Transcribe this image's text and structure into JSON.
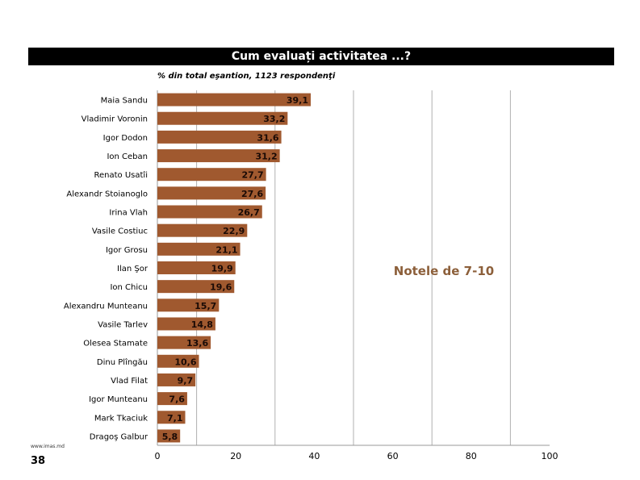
{
  "page": {
    "site": "www.imas.md",
    "page_number": "38"
  },
  "chart_data": {
    "type": "bar",
    "orientation": "horizontal",
    "title": "Cum evaluați activitatea ...?",
    "subtitle": "% din total eşantion, 1123 respondenţi",
    "annotation": "Notele de 7-10",
    "categories": [
      "Maia Sandu",
      "Vladimir Voronin",
      "Igor Dodon",
      "Ion Ceban",
      "Renato Usatîi",
      "Alexandr Stoianoglo",
      "Irina Vlah",
      "Vasile Costiuc",
      "Igor Grosu",
      "Ilan Şor",
      "Ion Chicu",
      "Alexandru Munteanu",
      "Vasile Tarlev",
      "Olesea Stamate",
      "Dinu Plîngău",
      "Vlad Filat",
      "Igor Munteanu",
      "Mark Tkaciuk",
      "Dragoş Galbur"
    ],
    "values": [
      39.1,
      33.2,
      31.6,
      31.2,
      27.7,
      27.6,
      26.7,
      22.9,
      21.1,
      19.9,
      19.6,
      15.7,
      14.8,
      13.6,
      10.6,
      9.7,
      7.6,
      7.1,
      5.8
    ],
    "data_labels": [
      "39,1",
      "33,2",
      "31,6",
      "31,2",
      "27,7",
      "27,6",
      "26,7",
      "22,9",
      "21,1",
      "19,9",
      "19,6",
      "15,7",
      "14,8",
      "13,6",
      "10,6",
      "9,7",
      "7,6",
      "7,1",
      "5,8"
    ],
    "xlim": [
      0,
      100
    ],
    "x_ticks": [
      0,
      20,
      40,
      60,
      80,
      100
    ],
    "gridlines": [
      10,
      30,
      50,
      70,
      90
    ],
    "xlabel": "",
    "ylabel": "",
    "colors": {
      "bar": "#a0592f",
      "annotation": "#8c5f3a",
      "grid": "#b0b0b0"
    }
  }
}
